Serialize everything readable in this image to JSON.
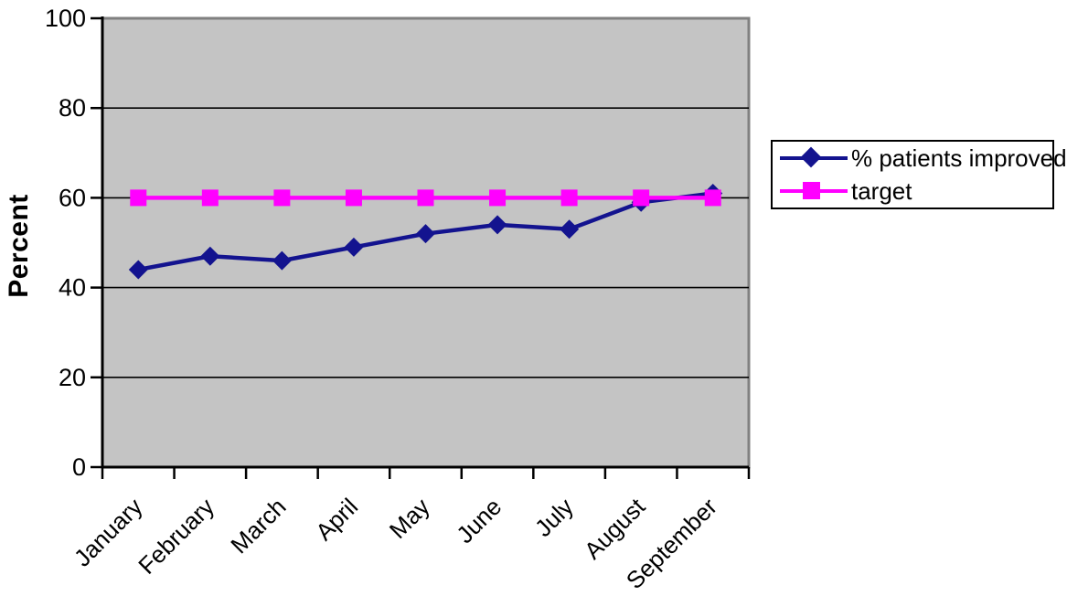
{
  "chart_data": {
    "type": "line",
    "categories": [
      "January",
      "February",
      "March",
      "April",
      "May",
      "June",
      "July",
      "August",
      "September"
    ],
    "series": [
      {
        "name": "% patients improved",
        "values": [
          44,
          47,
          46,
          49,
          52,
          54,
          53,
          59,
          61
        ],
        "color": "#13138f",
        "marker": "diamond"
      },
      {
        "name": "target",
        "values": [
          60,
          60,
          60,
          60,
          60,
          60,
          60,
          60,
          60
        ],
        "color": "#ff00ff",
        "marker": "square"
      }
    ],
    "title": "",
    "xlabel": "",
    "ylabel": "Percent",
    "ylim": [
      0,
      100
    ],
    "yticks": [
      0,
      20,
      40,
      60,
      80,
      100
    ],
    "grid": "horizontal",
    "legend_position": "right",
    "plot_bg": "#c4c4c4",
    "plot_border_color": "#808080",
    "gridline_color": "#000000",
    "axis_color": "#000000",
    "tick_label_color": "#000000"
  }
}
